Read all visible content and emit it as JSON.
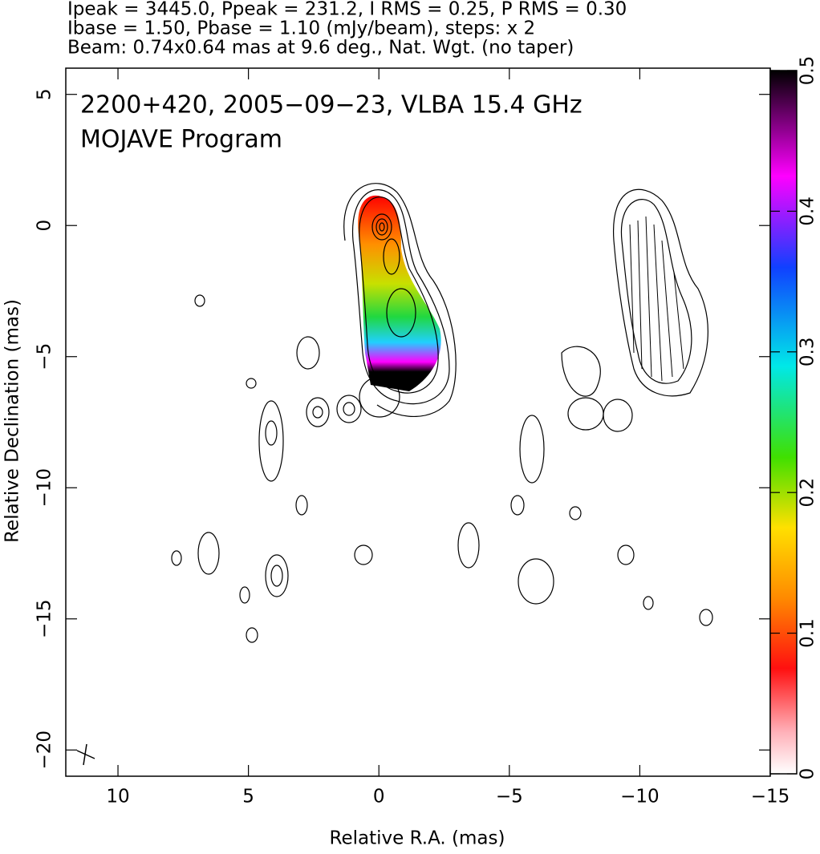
{
  "chart_data": {
    "type": "contour-map",
    "header_lines": [
      "Ipeak = 3445.0, Ppeak = 231.2, I RMS = 0.25, P RMS = 0.30",
      "Ibase = 1.50, Pbase = 1.10 (mJy/beam), steps: x 2",
      "Beam: 0.74x0.64 mas at 9.6 deg., Nat. Wgt. (no taper)"
    ],
    "title": "2200+420, 2005−09−23, VLBA 15.4 GHz",
    "subtitle": "MOJAVE Program",
    "xlabel": "Relative R.A. (mas)",
    "ylabel": "Relative Declination (mas)",
    "xlim": [
      12,
      -15
    ],
    "ylim": [
      -21,
      6
    ],
    "xticks": [
      10,
      5,
      0,
      {
        "value": -5,
        "label": "−5"
      },
      {
        "value": -10,
        "label": "−10"
      },
      {
        "value": -15,
        "label": "−15"
      }
    ],
    "yticks": [
      5,
      0,
      {
        "value": -5,
        "label": "−5"
      },
      {
        "value": -10,
        "label": "−10"
      },
      {
        "value": -15,
        "label": "−15"
      },
      {
        "value": -20,
        "label": "−20"
      }
    ],
    "colorbar_lim": [
      0,
      0.5
    ],
    "colorbar_ticks": [
      0,
      0.1,
      0.2,
      0.3,
      0.4,
      0.5
    ]
  }
}
